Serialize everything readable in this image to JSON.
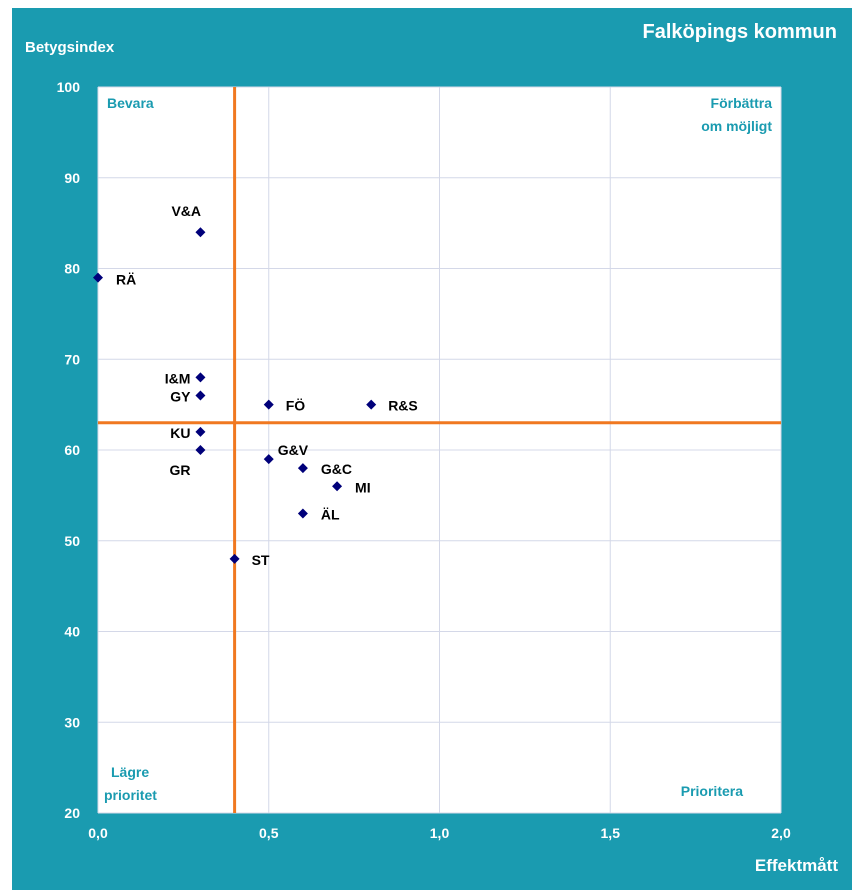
{
  "page": {
    "title": "Falköpings kommun",
    "ylabel": "Betygsindex",
    "xlabel": "Effektmått"
  },
  "quadrants": {
    "top_left": [
      "Bevara"
    ],
    "top_right": [
      "Förbättra",
      "om möjligt"
    ],
    "bottom_left": [
      "Lägre",
      "prioritet"
    ],
    "bottom_right": [
      "Prioritera"
    ]
  },
  "chart_data": {
    "type": "scatter",
    "title": "Falköpings kommun",
    "xlabel": "Effektmått",
    "ylabel": "Betygsindex",
    "xlim": [
      0,
      2
    ],
    "ylim": [
      20,
      100
    ],
    "x_ticks": [
      "0,0",
      "0,5",
      "1,0",
      "1,5",
      "2,0"
    ],
    "x_tick_values": [
      0,
      0.5,
      1,
      1.5,
      2
    ],
    "y_ticks": [
      "20",
      "30",
      "40",
      "50",
      "60",
      "70",
      "80",
      "90",
      "100"
    ],
    "y_tick_values": [
      20,
      30,
      40,
      50,
      60,
      70,
      80,
      90,
      100
    ],
    "grid": true,
    "reference_lines": {
      "x": 0.4,
      "y": 63
    },
    "colors": {
      "background": "#1a9bb0",
      "plot": "#ffffff",
      "marker": "#00007a",
      "reference": "#f07820",
      "grid": "#d4d8e8",
      "quadrant_text": "#1a9bb0"
    },
    "points": [
      {
        "label": "V&A",
        "x": 0.3,
        "y": 84
      },
      {
        "label": "RÄ",
        "x": 0.0,
        "y": 79
      },
      {
        "label": "I&M",
        "x": 0.3,
        "y": 68
      },
      {
        "label": "GY",
        "x": 0.3,
        "y": 66
      },
      {
        "label": "KU",
        "x": 0.3,
        "y": 62
      },
      {
        "label": "GR",
        "x": 0.3,
        "y": 60
      },
      {
        "label": "FÖ",
        "x": 0.5,
        "y": 65
      },
      {
        "label": "R&S",
        "x": 0.8,
        "y": 65
      },
      {
        "label": "G&V",
        "x": 0.5,
        "y": 59
      },
      {
        "label": "G&C",
        "x": 0.6,
        "y": 58
      },
      {
        "label": "MI",
        "x": 0.7,
        "y": 56
      },
      {
        "label": "ÄL",
        "x": 0.6,
        "y": 53
      },
      {
        "label": "ST",
        "x": 0.4,
        "y": 48
      }
    ]
  }
}
